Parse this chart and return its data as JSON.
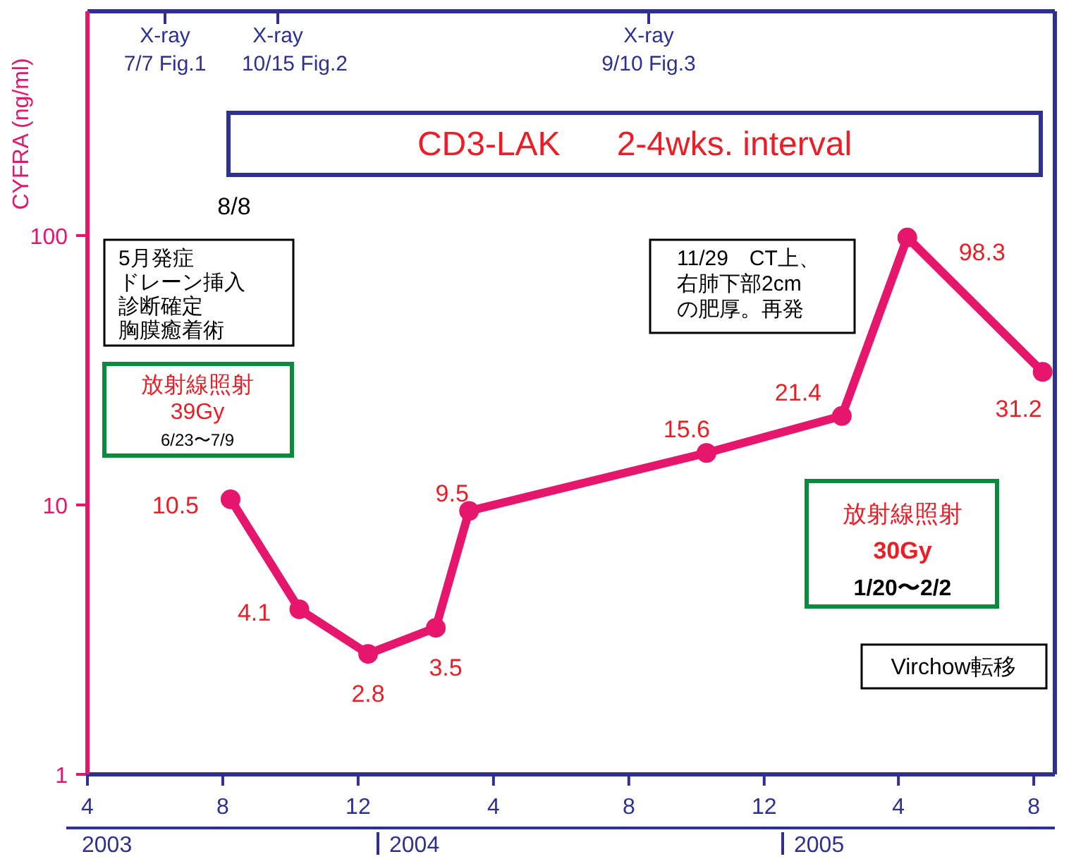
{
  "chart_data": {
    "type": "line",
    "ylabel": "CYFRA (ng/ml)",
    "log": "y",
    "marker": "circle",
    "line_style": "solid",
    "data_labels": true,
    "color": "#e5166b",
    "x": [
      "2003-08-08",
      "2003-10-09",
      "2003-12-10",
      "2004-02-09",
      "2004-03-10",
      "2004-10-10",
      "2005-02-09",
      "2005-04-09",
      "2005-08-09"
    ],
    "values": [
      10.5,
      4.1,
      2.8,
      3.5,
      9.5,
      15.6,
      21.4,
      98.3,
      31.2
    ],
    "xlim": [
      "2003-04-01",
      "2005-08-20"
    ],
    "xticks": [
      {
        "value": "2003-04-01",
        "label": "4"
      },
      {
        "value": "2003-08-01",
        "label": "8"
      },
      {
        "value": "2003-12-01",
        "label": "12"
      },
      {
        "value": "2004-04-01",
        "label": "4"
      },
      {
        "value": "2004-08-01",
        "label": "8"
      },
      {
        "value": "2004-12-01",
        "label": "12"
      },
      {
        "value": "2005-04-01",
        "label": "4"
      },
      {
        "value": "2005-08-01",
        "label": "8"
      }
    ],
    "ylim": [
      1,
      680
    ],
    "yticks": [
      1,
      10,
      100
    ],
    "annotations": [
      "8/8",
      "X-ray 7/7 Fig.1",
      "X-ray 10/15 Fig.2",
      "X-ray 9/10 Fig.3",
      "CD3-LAK 2-4wks. interval",
      "5月発症ドレーン挿入診断確定胸膜癒着術",
      "放射線照射",
      "39Gy",
      "6/23〜7/9",
      "11/29　CT上、右肺下部2cmの肥厚。再発",
      "放射線照射",
      "30Gy",
      "1/20〜2/2",
      "Virchow転移",
      "2003",
      "2004",
      "2005"
    ]
  }
}
